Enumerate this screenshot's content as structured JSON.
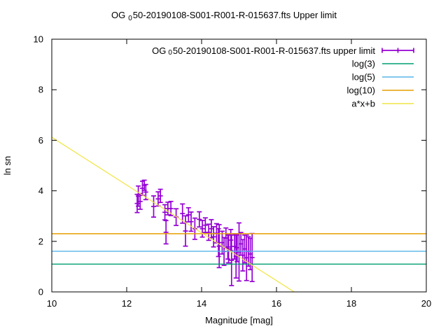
{
  "page": {
    "background": "#ffffff",
    "axis_color": "#000000",
    "text_color": "#000000"
  },
  "title": {
    "prefix": "OG",
    "sub": "0",
    "rest": "50-20190108-S001-R001-R-015637.fts Upper limit"
  },
  "chart_data": {
    "type": "scatter",
    "title": "OG_0 50-20190108-S001-R001-R-015637.fts Upper limit",
    "xlabel": "Magnitude [mag]",
    "ylabel": "ln sn",
    "xlim": [
      10,
      20
    ],
    "ylim": [
      0,
      10
    ],
    "xticks": [
      10,
      12,
      14,
      16,
      18,
      20
    ],
    "yticks": [
      0,
      2,
      4,
      6,
      8,
      10
    ],
    "grid": false,
    "legend_position": "top-right-inside",
    "series": [
      {
        "type": "errorbars",
        "color": "#9400d3",
        "name": "OG_0 50-20190108-S001-R001-R-015637.fts upper limit",
        "name_parts": {
          "prefix": "OG",
          "sub": "0",
          "rest": "50-20190108-S001-R001-R-015637.fts upper limit"
        },
        "points": [
          [
            12.28,
            3.5,
            0.36
          ],
          [
            12.31,
            3.79,
            0.4
          ],
          [
            12.36,
            3.58,
            0.31
          ],
          [
            12.42,
            4.1,
            0.28
          ],
          [
            12.47,
            4.22,
            0.2
          ],
          [
            12.51,
            3.95,
            0.3
          ],
          [
            12.72,
            3.38,
            0.42
          ],
          [
            12.84,
            3.68,
            0.28
          ],
          [
            12.9,
            3.8,
            0.26
          ],
          [
            13.02,
            3.15,
            0.3
          ],
          [
            13.05,
            2.36,
            0.46
          ],
          [
            13.1,
            3.3,
            0.25
          ],
          [
            13.18,
            3.3,
            0.28
          ],
          [
            13.32,
            2.96,
            0.33
          ],
          [
            13.49,
            3.1,
            0.38
          ],
          [
            13.57,
            2.41,
            0.6
          ],
          [
            13.65,
            3.05,
            0.28
          ],
          [
            13.72,
            2.78,
            0.38
          ],
          [
            13.82,
            2.5,
            0.42
          ],
          [
            13.94,
            2.87,
            0.3
          ],
          [
            14.02,
            2.5,
            0.33
          ],
          [
            14.1,
            2.64,
            0.29
          ],
          [
            14.19,
            2.36,
            0.32
          ],
          [
            14.26,
            2.5,
            0.36
          ],
          [
            14.32,
            2.18,
            0.4
          ],
          [
            14.4,
            2.32,
            0.38
          ],
          [
            14.45,
            1.95,
            0.55
          ],
          [
            14.47,
            1.81,
            0.85
          ],
          [
            14.55,
            1.95,
            0.45
          ],
          [
            14.6,
            1.6,
            0.55
          ],
          [
            14.65,
            2.13,
            0.4
          ],
          [
            14.7,
            1.78,
            0.48
          ],
          [
            14.72,
            1.7,
            0.55
          ],
          [
            14.78,
            2.05,
            0.42
          ],
          [
            14.8,
            1.25,
            1.0
          ],
          [
            14.88,
            1.8,
            0.5
          ],
          [
            14.92,
            1.4,
            0.85
          ],
          [
            14.95,
            1.75,
            0.55
          ],
          [
            15.0,
            1.58,
            1.15
          ],
          [
            15.05,
            1.9,
            0.45
          ],
          [
            15.1,
            1.45,
            0.62
          ],
          [
            15.15,
            1.7,
            0.55
          ],
          [
            15.2,
            1.35,
            0.9
          ],
          [
            15.25,
            1.6,
            0.58
          ],
          [
            15.3,
            1.5,
            0.62
          ],
          [
            15.35,
            1.36,
            0.95
          ]
        ]
      },
      {
        "type": "hline",
        "name": "log(3)",
        "y": 1.0986,
        "color": "#009e73"
      },
      {
        "type": "hline",
        "name": "log(5)",
        "y": 1.6094,
        "color": "#56b4e9"
      },
      {
        "type": "hline",
        "name": "log(10)",
        "y": 2.3026,
        "color": "#e69f00"
      },
      {
        "type": "line",
        "name": "a*x+b",
        "points": [
          [
            10,
            6.12
          ],
          [
            16.47,
            0
          ]
        ],
        "color": "#f0e442"
      }
    ]
  }
}
